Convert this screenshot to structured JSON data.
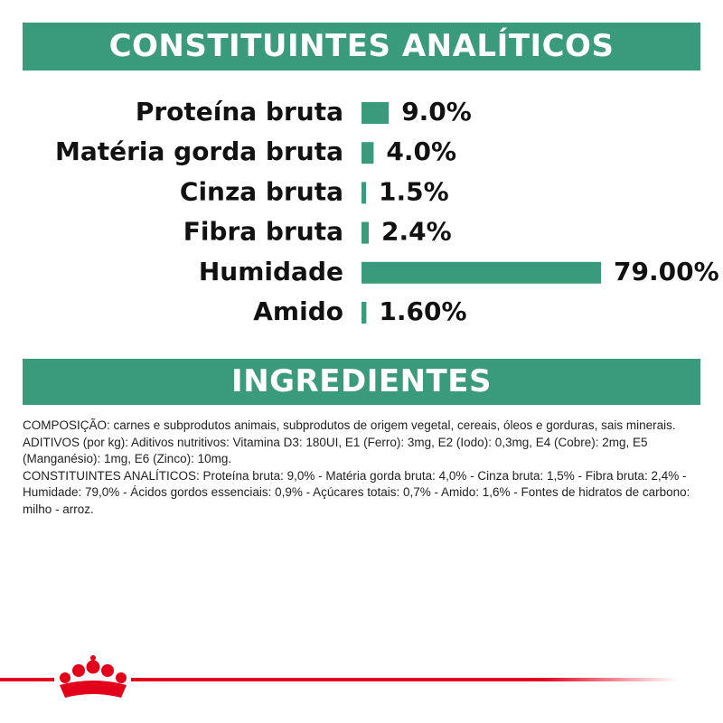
{
  "chart_data": {
    "type": "bar",
    "orientation": "horizontal",
    "title": "CONSTITUINTES ANALÍTICOS",
    "categories": [
      "Proteína bruta",
      "Matéria gorda bruta",
      "Cinza bruta",
      "Fibra bruta",
      "Humidade",
      "Amido"
    ],
    "values": [
      9.0,
      4.0,
      1.5,
      2.4,
      79.0,
      1.6
    ],
    "value_labels": [
      "9.0%",
      "4.0%",
      "1.5%",
      "2.4%",
      "79.00%",
      "1.60%"
    ],
    "color": "#3a9a7c"
  },
  "ingredients": {
    "title": "INGREDIENTES",
    "paragraphs": [
      "COMPOSIÇÃO: carnes e subprodutos animais, subprodutos de origem vegetal, cereais, óleos e gorduras, sais minerais.",
      "ADITIVOS (por kg): Aditivos nutritivos: Vitamina D3: 180UI, E1 (Ferro): 3mg, E2 (Iodo): 0,3mg, E4 (Cobre): 2mg, E5 (Manganésio): 1mg, E6 (Zinco): 10mg.",
      "CONSTITUINTES ANALÍTICOS: Proteína bruta: 9,0% - Matéria gorda bruta: 4,0% - Cinza bruta: 1,5% - Fibra bruta: 2,4% - Humidade: 79,0% - Ácidos gordos essenciais: 0,9% - Açúcares totais: 0,7% - Amido: 1,6% - Fontes de hidratos de carbono: milho - arroz."
    ]
  }
}
